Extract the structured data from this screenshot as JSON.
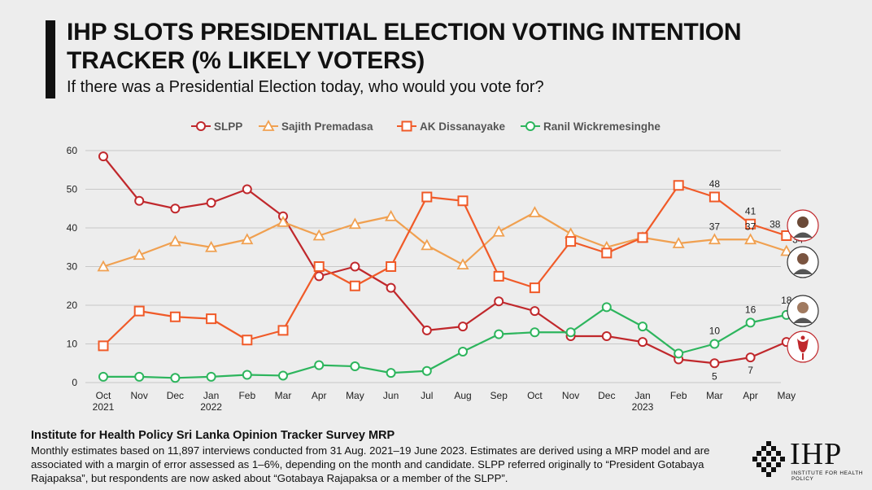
{
  "header": {
    "title": "IHP SLOTS PRESIDENTIAL ELECTION VOTING INTENTION TRACKER (% LIKELY VOTERS)",
    "subtitle": "If there was a Presidential Election today, who would you vote for?"
  },
  "chart_data": {
    "type": "line",
    "categories": [
      "Oct 2021",
      "Nov",
      "Dec",
      "Jan 2022",
      "Feb",
      "Mar",
      "Apr",
      "May",
      "Jun",
      "Jul",
      "Aug",
      "Sep",
      "Oct",
      "Nov",
      "Dec",
      "Jan 2023",
      "Feb",
      "Mar",
      "Apr",
      "May"
    ],
    "x_tick_lines": [
      [
        "Oct",
        "2021"
      ],
      [
        "Nov"
      ],
      [
        "Dec"
      ],
      [
        "Jan",
        "2022"
      ],
      [
        "Feb"
      ],
      [
        "Mar"
      ],
      [
        "Apr"
      ],
      [
        "May"
      ],
      [
        "Jun"
      ],
      [
        "Jul"
      ],
      [
        "Aug"
      ],
      [
        "Sep"
      ],
      [
        "Oct"
      ],
      [
        "Nov"
      ],
      [
        "Dec"
      ],
      [
        "Jan",
        "2023"
      ],
      [
        "Feb"
      ],
      [
        "Mar"
      ],
      [
        "Apr"
      ],
      [
        "May"
      ]
    ],
    "ylim": [
      0,
      60
    ],
    "yticks": [
      0,
      10,
      20,
      30,
      40,
      50,
      60
    ],
    "grid": true,
    "legend_position": "top",
    "series": [
      {
        "name": "SLPP",
        "color": "#c0282c",
        "marker": "circle",
        "values": [
          58.5,
          47,
          45,
          46.5,
          50,
          43,
          27.5,
          30,
          24.5,
          13.5,
          14.5,
          21,
          18.5,
          12,
          12,
          10.5,
          6,
          5,
          6.5,
          10.5
        ],
        "labels": [
          {
            "i": 17,
            "text": "5"
          },
          {
            "i": 18,
            "text": "7"
          },
          {
            "i": 19,
            "text": "10"
          }
        ]
      },
      {
        "name": "Sajith Premadasa",
        "color": "#f0a050",
        "marker": "triangle",
        "values": [
          30,
          33,
          36.5,
          35,
          37,
          41.5,
          38,
          41,
          43,
          35.5,
          30.5,
          39,
          44,
          38.5,
          35,
          37.5,
          36,
          37,
          37,
          34
        ],
        "labels": [
          {
            "i": 17,
            "text": "37"
          },
          {
            "i": 18,
            "text": "37"
          },
          {
            "i": 19,
            "text": "34"
          }
        ]
      },
      {
        "name": "AK Dissanayake",
        "color": "#f05a28",
        "marker": "square",
        "values": [
          9.5,
          18.5,
          17,
          16.5,
          11,
          13.5,
          30,
          25,
          30,
          48,
          47,
          27.5,
          24.5,
          36.5,
          33.5,
          37.5,
          51,
          48,
          41,
          38
        ],
        "labels": [
          {
            "i": 17,
            "text": "48"
          },
          {
            "i": 18,
            "text": "41"
          },
          {
            "i": 19,
            "text": "38"
          }
        ]
      },
      {
        "name": "Ranil Wickremesinghe",
        "color": "#2db55d",
        "marker": "circle",
        "values": [
          1.5,
          1.5,
          1.2,
          1.5,
          2,
          1.8,
          4.5,
          4.2,
          2.5,
          3,
          8,
          12.5,
          13,
          13,
          19.5,
          14.5,
          7.5,
          10,
          15.5,
          17.5
        ],
        "labels": [
          {
            "i": 17,
            "text": "10"
          },
          {
            "i": 18,
            "text": "16"
          },
          {
            "i": 19,
            "text": "18"
          }
        ]
      }
    ]
  },
  "footer": {
    "source_title": "Institute for Health Policy Sri Lanka Opinion Tracker Survey MRP",
    "note": "Monthly estimates based on 11,897 interviews conducted from 31 Aug. 2021–19 June 2023. Estimates are derived using a MRP model and are associated with a margin of error assessed as 1–6%, depending on the month and candidate. SLPP referred originally to “President Gotabaya Rajapaksa”, but respondents are now asked about “Gotabaya Rajapaksa or a member of the SLPP”."
  },
  "logo": {
    "text": "IHP",
    "subtext": "INSTITUTE FOR HEALTH POLICY"
  }
}
